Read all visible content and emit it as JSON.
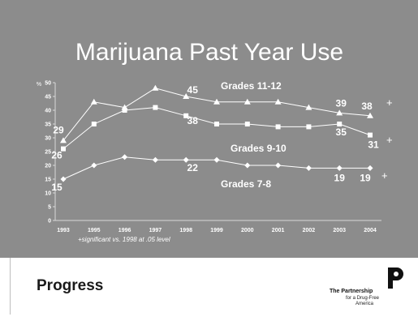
{
  "slide": {
    "title": "Marijuana Past Year Use",
    "footer_label": "Progress",
    "footnote": "+significant vs. 1998 at .05 level"
  },
  "logo": {
    "name": "The Partnership",
    "sub1": "for a Drug-Free",
    "sub2": "America"
  },
  "colors": {
    "panel": "#8c8c8c",
    "line": "#ffffff"
  },
  "chart_data": {
    "type": "line",
    "title": "Marijuana Past Year Use",
    "ylabel": "%",
    "ylim": [
      0,
      50
    ],
    "yticks": [
      0,
      5,
      10,
      15,
      20,
      25,
      30,
      35,
      40,
      45,
      50
    ],
    "categories": [
      "1993",
      "1995",
      "1996",
      "1997",
      "1998",
      "1999",
      "2000",
      "2001",
      "2002",
      "2003",
      "2004"
    ],
    "series": [
      {
        "name": "Grades 11-12",
        "marker": "triangle",
        "values": [
          29,
          43,
          41,
          48,
          45,
          43,
          43,
          43,
          41,
          39,
          38
        ],
        "labels": [
          {
            "index": 0,
            "text": "29"
          },
          {
            "index": 4,
            "text": "45"
          },
          {
            "index": 9,
            "text": "39"
          },
          {
            "index": 10,
            "text": "38"
          }
        ],
        "significant": true
      },
      {
        "name": "Grades 9-10",
        "marker": "square",
        "values": [
          26,
          35,
          40,
          41,
          38,
          35,
          35,
          34,
          34,
          35,
          31
        ],
        "labels": [
          {
            "index": 0,
            "text": "26"
          },
          {
            "index": 4,
            "text": "38"
          },
          {
            "index": 9,
            "text": "35"
          },
          {
            "index": 10,
            "text": "31"
          }
        ],
        "significant": true
      },
      {
        "name": "Grades 7-8",
        "marker": "diamond",
        "values": [
          15,
          20,
          23,
          22,
          22,
          22,
          20,
          20,
          19,
          19,
          19
        ],
        "labels": [
          {
            "index": 0,
            "text": "15"
          },
          {
            "index": 4,
            "text": "22"
          },
          {
            "index": 9,
            "text": "19"
          },
          {
            "index": 10,
            "text": "19"
          }
        ],
        "significant": true
      }
    ],
    "legend": "inline",
    "grid": false
  }
}
